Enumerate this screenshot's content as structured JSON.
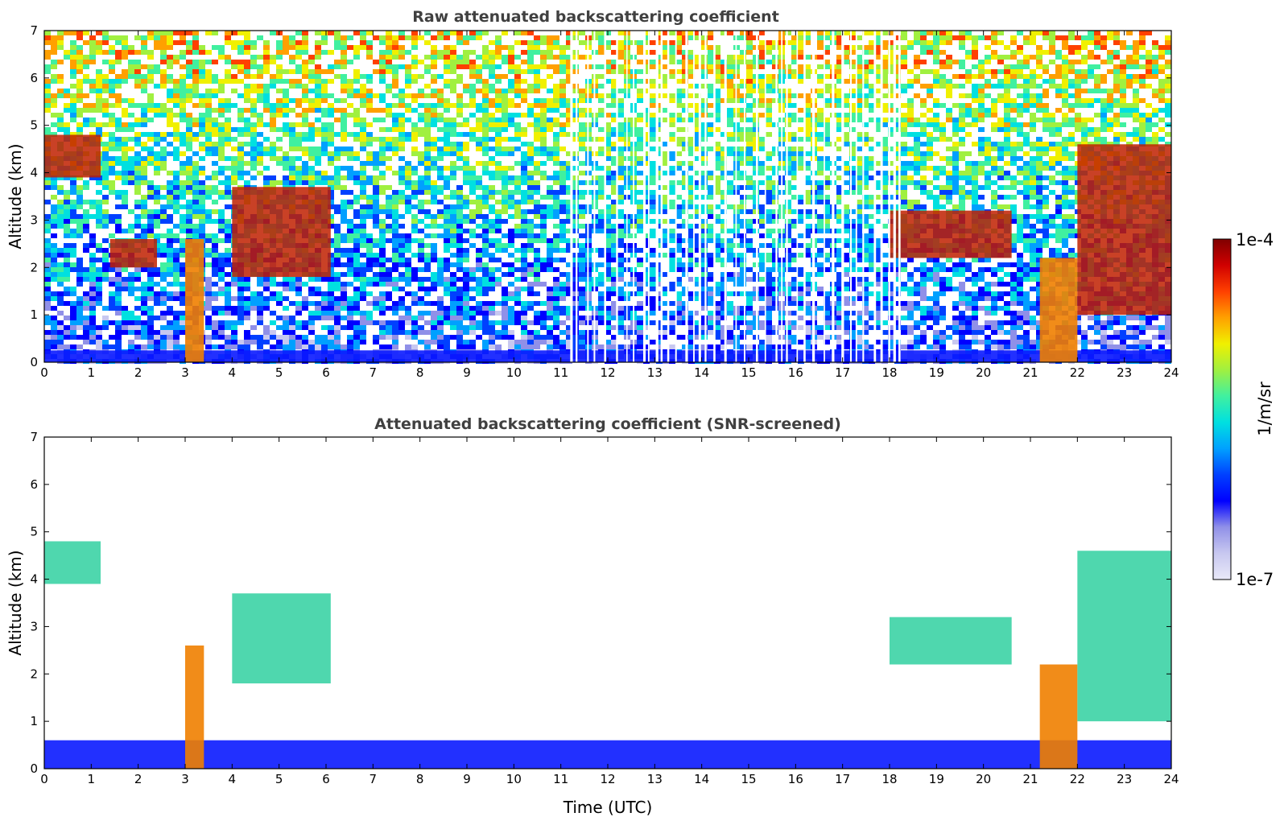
{
  "chart_data": [
    {
      "type": "heatmap",
      "title": "Raw attenuated backscattering coefficient",
      "xlabel": "",
      "ylabel": "Altitude (km)",
      "xlim": [
        0,
        24
      ],
      "ylim": [
        0,
        7
      ],
      "xticks": [
        "0",
        "1",
        "2",
        "3",
        "4",
        "5",
        "6",
        "7",
        "8",
        "9",
        "10",
        "11",
        "12",
        "13",
        "14",
        "15",
        "16",
        "17",
        "18",
        "19",
        "20",
        "21",
        "22",
        "23",
        "24"
      ],
      "yticks": [
        "0",
        "1",
        "2",
        "3",
        "4",
        "5",
        "6",
        "7"
      ],
      "features": [
        {
          "kind": "surface-layer",
          "x": [
            0,
            24
          ],
          "y": [
            0,
            0.25
          ]
        },
        {
          "kind": "cloud",
          "x": [
            0.0,
            1.2
          ],
          "y": [
            3.9,
            4.8
          ]
        },
        {
          "kind": "cloud",
          "x": [
            1.4,
            2.4
          ],
          "y": [
            2.0,
            2.6
          ]
        },
        {
          "kind": "precipitation",
          "x": [
            3.0,
            3.4
          ],
          "y": [
            0.0,
            2.6
          ]
        },
        {
          "kind": "cloud",
          "x": [
            4.0,
            6.1
          ],
          "y": [
            1.8,
            3.7
          ]
        },
        {
          "kind": "cloud",
          "x": [
            18.0,
            20.6
          ],
          "y": [
            2.2,
            3.2
          ]
        },
        {
          "kind": "precipitation",
          "x": [
            21.2,
            22.0
          ],
          "y": [
            0.0,
            2.2
          ]
        },
        {
          "kind": "cloud",
          "x": [
            22.0,
            24.0
          ],
          "y": [
            1.0,
            4.6
          ]
        }
      ],
      "data_gaps_x": [
        11.2,
        18.3
      ]
    },
    {
      "type": "heatmap",
      "title": "Attenuated backscattering coefficient (SNR-screened)",
      "xlabel": "Time (UTC)",
      "ylabel": "Altitude (km)",
      "xlim": [
        0,
        24
      ],
      "ylim": [
        0,
        7
      ],
      "xticks": [
        "0",
        "1",
        "2",
        "3",
        "4",
        "5",
        "6",
        "7",
        "8",
        "9",
        "10",
        "11",
        "12",
        "13",
        "14",
        "15",
        "16",
        "17",
        "18",
        "19",
        "20",
        "21",
        "22",
        "23",
        "24"
      ],
      "yticks": [
        "0",
        "1",
        "2",
        "3",
        "4",
        "5",
        "6",
        "7"
      ],
      "features": [
        {
          "kind": "boundary-layer",
          "x": [
            0,
            24
          ],
          "y": [
            0,
            0.6
          ]
        },
        {
          "kind": "cloud",
          "x": [
            0.0,
            1.2
          ],
          "y": [
            3.9,
            4.8
          ]
        },
        {
          "kind": "precipitation",
          "x": [
            3.0,
            3.4
          ],
          "y": [
            0.0,
            2.6
          ]
        },
        {
          "kind": "cloud",
          "x": [
            4.0,
            6.1
          ],
          "y": [
            1.8,
            3.7
          ]
        },
        {
          "kind": "cloud",
          "x": [
            18.0,
            20.6
          ],
          "y": [
            2.2,
            3.2
          ]
        },
        {
          "kind": "precipitation",
          "x": [
            21.2,
            22.0
          ],
          "y": [
            0.0,
            2.2
          ]
        },
        {
          "kind": "cloud",
          "x": [
            22.0,
            24.0
          ],
          "y": [
            1.0,
            4.6
          ]
        }
      ]
    }
  ],
  "colorbar": {
    "label": "1/m/sr",
    "min_label": "1e-7",
    "max_label": "1e-4",
    "scale": "log",
    "colormap": "jet",
    "colors": [
      "#e8e8f8",
      "#c8c8f0",
      "#9090e8",
      "#0000ff",
      "#0040ff",
      "#00a0ff",
      "#00e0e0",
      "#40f0a0",
      "#a0f040",
      "#f0f000",
      "#ffa000",
      "#ff4000",
      "#d00000",
      "#800000"
    ]
  }
}
